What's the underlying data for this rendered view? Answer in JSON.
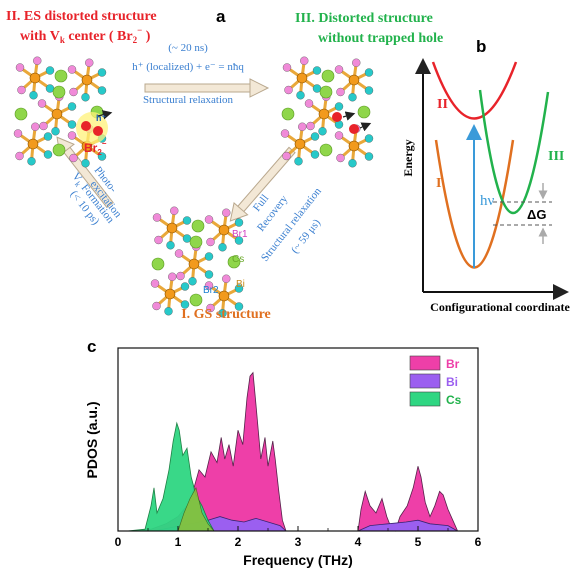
{
  "panel_a": {
    "label": "a",
    "state_ii": {
      "line1": "II. ES distorted structure",
      "line2": "with V",
      "sub": "k",
      "line2_end": " center ( Br",
      "br_sub": "2",
      "br_sup": "−",
      "close": " )"
    },
    "state_iii": {
      "line1": "III. Distorted structure",
      "line2": "without trapped hole"
    },
    "state_i": "I. GS structure",
    "top_arrow": {
      "time": "(~ 20 ns)",
      "eq": "h⁺ (localized) + e⁻ = nħq",
      "label": "Structural relaxation"
    },
    "left_arrow": {
      "label1": "Photo-",
      "label2": "excitation",
      "label3": "V",
      "label3_sub": "k",
      "label3_end": " Formation",
      "time": "(< 10 ps)"
    },
    "right_arrow": {
      "label1": "Full",
      "label2": "Recovery",
      "label3": "Structural relaxation",
      "time": "(~ 59 μs)"
    },
    "atoms": {
      "br1": "Br1",
      "br2": "Br2",
      "cs": "Cs",
      "bi": "Bi",
      "hplus": "h⁺",
      "br2minus": "Br",
      "br2minus_sub": "2",
      "br2minus_sup": "−"
    }
  },
  "panel_b": {
    "label": "b",
    "ylabel": "Energy",
    "xlabel": "Configurational coordinate",
    "curve_labels": {
      "I": "I",
      "II": "II",
      "III": "III"
    },
    "photon": "hν",
    "delta_g": "ΔG",
    "colors": {
      "I": "#e07020",
      "II": "#e8232a",
      "III": "#22b24c",
      "photon": "#3a9ad9"
    }
  },
  "panel_c": {
    "label": "c",
    "chart_data": {
      "type": "area",
      "xlabel": "Frequency (THz)",
      "ylabel": "PDOS (a.u.)",
      "xlim": [
        0,
        6
      ],
      "x_ticks": [
        "0",
        "1",
        "2",
        "3",
        "4",
        "5",
        "6"
      ],
      "legend_position": "top-right",
      "series": [
        {
          "name": "Br",
          "color": "#ee3fa8"
        },
        {
          "name": "Bi",
          "color": "#9b5ff0"
        },
        {
          "name": "Cs",
          "color": "#2fd682"
        }
      ]
    }
  }
}
